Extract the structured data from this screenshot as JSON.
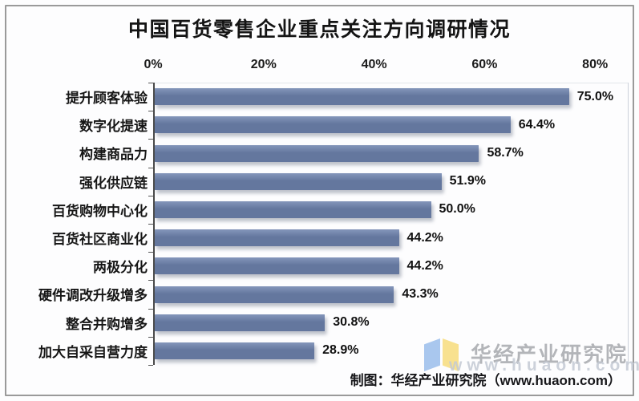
{
  "title": "中国百货零售企业重点关注方向调研情况",
  "chart_data": {
    "type": "bar",
    "orientation": "horizontal",
    "title": "中国百货零售企业重点关注方向调研情况",
    "categories": [
      "提升顾客体验",
      "数字化提速",
      "构建商品力",
      "强化供应链",
      "百货购物中心化",
      "百货社区商业化",
      "两极分化",
      "硬件调改升级增多",
      "整合并购增多",
      "加大自采自营力度"
    ],
    "values": [
      75.0,
      64.4,
      58.7,
      51.9,
      50.0,
      44.2,
      44.2,
      43.3,
      30.8,
      28.9
    ],
    "value_labels": [
      "75.0%",
      "64.4%",
      "58.7%",
      "51.9%",
      "50.0%",
      "44.2%",
      "44.2%",
      "43.3%",
      "30.8%",
      "28.9%"
    ],
    "x_tick_labels": [
      "0%",
      "20%",
      "40%",
      "60%",
      "80%"
    ],
    "x_tick_values": [
      0,
      20,
      40,
      60,
      80
    ],
    "xlim": [
      0,
      86
    ],
    "grid": "off",
    "legend": "none",
    "bar_color": "#64779e",
    "bar_color_top": "#8496ba"
  },
  "footer": {
    "credit": "制图：华经产业研究院（www.huaon.com）"
  },
  "watermark": {
    "brand": "华经产业研究院",
    "url": "www.huaon.com",
    "brand_color": "#b3b5b9",
    "logo_colors": {
      "left_page": "#a9c7ee",
      "right_page": "#f8e18f"
    }
  }
}
